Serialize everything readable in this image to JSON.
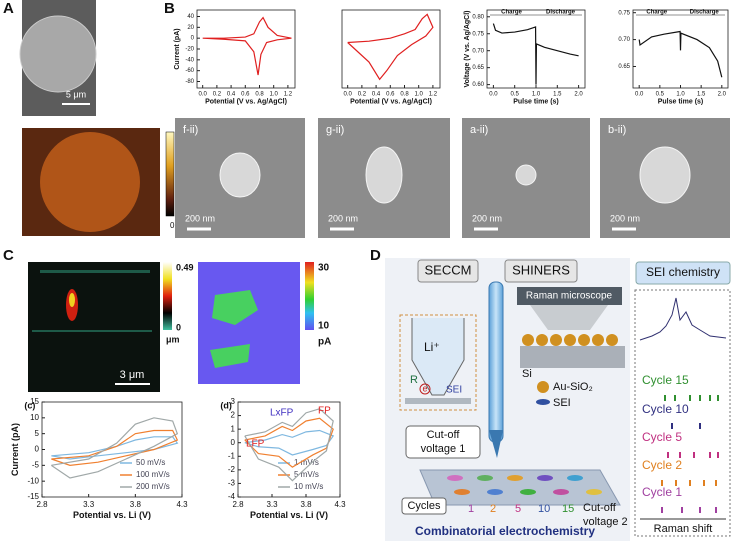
{
  "panel_labels": [
    "A",
    "B",
    "C",
    "D"
  ],
  "a": {
    "scale_bar": "5 μm",
    "colorbar_max": "66",
    "colorbar_min": "0 nA"
  },
  "b": {
    "plots": [
      {
        "xlabel": "Potential (V vs. Ag/AgCl)",
        "ylabel": "Current (pA)",
        "xlim": [
          -0.08,
          1.3
        ],
        "ylim": [
          -92,
          52
        ],
        "xticks": [
          {
            "value": 0,
            "label": "0.0"
          },
          {
            "value": 0.2,
            "label": "0.2"
          },
          {
            "value": 0.4,
            "label": "0.4"
          },
          {
            "value": 0.6,
            "label": "0.6"
          },
          {
            "value": 0.8,
            "label": "0.8"
          },
          {
            "value": 1,
            "label": "1.0"
          },
          {
            "value": 1.2,
            "label": "1.2"
          }
        ],
        "yticks": [
          -80,
          -60,
          -40,
          -20,
          0,
          20,
          40
        ],
        "series": [
          {
            "color": "#e02020",
            "x": [
              0,
              0.3,
              0.6,
              0.72,
              0.8,
              0.85,
              0.92,
              1.05,
              1.25,
              1.05,
              0.9,
              0.82,
              0.78,
              0.72,
              0.6,
              0.3,
              0
            ],
            "y": [
              0,
              0,
              2,
              8,
              30,
              38,
              20,
              5,
              0,
              -3,
              -8,
              -30,
              -68,
              -25,
              -5,
              -2,
              0
            ]
          }
        ]
      },
      {
        "xlabel": "Potential (V vs. Ag/AgCl)",
        "xlim": [
          -0.08,
          1.3
        ],
        "ylim": [
          -100,
          80
        ],
        "xticks": [
          {
            "value": 0,
            "label": "0.0"
          },
          {
            "value": 0.2,
            "label": "0.2"
          },
          {
            "value": 0.4,
            "label": "0.4"
          },
          {
            "value": 0.6,
            "label": "0.6"
          },
          {
            "value": 0.8,
            "label": "0.8"
          },
          {
            "value": 1,
            "label": "1.0"
          },
          {
            "value": 1.2,
            "label": "1.2"
          }
        ],
        "series": [
          {
            "color": "#e02020",
            "x": [
              0,
              0.3,
              0.6,
              0.8,
              0.95,
              1.05,
              1.12,
              1.2,
              1.1,
              0.9,
              0.7,
              0.55,
              0.45,
              0.3,
              0.1,
              0
            ],
            "y": [
              5,
              8,
              15,
              25,
              35,
              60,
              70,
              40,
              20,
              0,
              -25,
              -60,
              -80,
              -40,
              -10,
              5
            ]
          }
        ]
      },
      {
        "xlabel": "Pulse time (s)",
        "ylabel": "Voltage (V vs. Ag/AgCl)",
        "xlim": [
          -0.15,
          2.15
        ],
        "ylim": [
          0.59,
          0.82
        ],
        "xticks": [
          {
            "value": 0,
            "label": "0.0"
          },
          {
            "value": 0.5,
            "label": "0.5"
          },
          {
            "value": 1,
            "label": "1.0"
          },
          {
            "value": 1.5,
            "label": "1.5"
          },
          {
            "value": 2,
            "label": "2.0"
          }
        ],
        "yticks": [
          {
            "value": 0.6,
            "label": "0.60"
          },
          {
            "value": 0.65,
            "label": "0.65"
          },
          {
            "value": 0.7,
            "label": "0.70"
          },
          {
            "value": 0.75,
            "label": "0.75"
          },
          {
            "value": 0.8,
            "label": "0.80"
          }
        ],
        "annotations": [
          "Charge",
          "Discharge"
        ],
        "series": [
          {
            "color": "#111",
            "x": [
              0,
              0.05,
              0.2,
              0.5,
              0.8,
              0.99,
              1,
              1.01,
              1.2,
              1.5,
              1.8,
              2
            ],
            "y": [
              0.78,
              0.76,
              0.752,
              0.755,
              0.762,
              0.77,
              0.6,
              0.72,
              0.71,
              0.7,
              0.69,
              0.685
            ]
          }
        ]
      },
      {
        "xlabel": "Pulse time (s)",
        "xlim": [
          -0.15,
          2.15
        ],
        "ylim": [
          0.61,
          0.755
        ],
        "xticks": [
          {
            "value": 0,
            "label": "0.0"
          },
          {
            "value": 0.5,
            "label": "0.5"
          },
          {
            "value": 1,
            "label": "1.0"
          },
          {
            "value": 1.5,
            "label": "1.5"
          },
          {
            "value": 2,
            "label": "2.0"
          }
        ],
        "yticks": [
          {
            "value": 0.65,
            "label": "0.65"
          },
          {
            "value": 0.7,
            "label": "0.70"
          },
          {
            "value": 0.75,
            "label": "0.75"
          }
        ],
        "annotations": [
          "Charge",
          "Discharge"
        ],
        "series": [
          {
            "color": "#111",
            "x": [
              0,
              0.02,
              0.3,
              0.6,
              0.99,
              1,
              1.01,
              1.4,
              1.7,
              1.9,
              2
            ],
            "y": [
              0.7,
              0.69,
              0.705,
              0.71,
              0.715,
              0.68,
              0.712,
              0.7,
              0.685,
              0.66,
              0.63
            ]
          }
        ]
      }
    ],
    "images": [
      {
        "label": "f-ii)",
        "scale_bar": "200 nm"
      },
      {
        "label": "g-ii)",
        "scale_bar": "200 nm"
      },
      {
        "label": "a-ii)",
        "scale_bar": "200 nm"
      },
      {
        "label": "b-ii)",
        "scale_bar": "200 nm"
      }
    ]
  },
  "c": {
    "scale_bar": "3 μm",
    "map1_colorbar": [
      "0.49",
      "0",
      "μm"
    ],
    "map2_colorbar": [
      "30",
      "10",
      "pA"
    ],
    "plots": [
      {
        "tag": "(c)",
        "xlabel": "Potential vs. Li (V)",
        "ylabel": "Current (pA)",
        "xlim": [
          2.8,
          4.3
        ],
        "ylim": [
          -15,
          15
        ],
        "xticks": [
          2.8,
          3.3,
          3.8,
          4.3
        ],
        "yticks": [
          -15,
          -10,
          -5,
          0,
          5,
          10,
          15
        ],
        "series": [
          {
            "name": "50 mV/s",
            "color": "#7fb8e0",
            "x": [
              2.9,
              3.3,
              3.6,
              3.8,
              4,
              4.2,
              4.25,
              4,
              3.7,
              3.4,
              3.1,
              2.9
            ],
            "y": [
              -2,
              -1,
              1,
              3,
              4,
              4,
              2,
              0,
              -1,
              -2,
              -3,
              -2
            ]
          },
          {
            "name": "100 mV/s",
            "color": "#f08030",
            "x": [
              2.9,
              3.3,
              3.6,
              3.8,
              4,
              4.2,
              4.25,
              4,
              3.7,
              3.4,
              3.1,
              2.9
            ],
            "y": [
              -3,
              -2,
              1,
              5,
              6,
              6,
              3,
              0,
              -2,
              -4,
              -5,
              -3
            ]
          },
          {
            "name": "200 mV/s",
            "color": "#a0a8a8",
            "x": [
              2.9,
              3.3,
              3.6,
              3.8,
              4,
              4.2,
              4.25,
              4,
              3.7,
              3.4,
              3.1,
              2.9
            ],
            "y": [
              -5,
              -3,
              2,
              8,
              10,
              9,
              5,
              1,
              -3,
              -7,
              -9,
              -5
            ]
          }
        ]
      },
      {
        "tag": "(d)",
        "xlabel": "Potential vs. Li (V)",
        "xlim": [
          2.8,
          4.3
        ],
        "ylim": [
          -4,
          3
        ],
        "xticks": [
          2.8,
          3.3,
          3.8,
          4.3
        ],
        "yticks": [
          -4,
          -3,
          -2,
          -1,
          0,
          1,
          2,
          3
        ],
        "annotations": [
          "LFP",
          "LxFP",
          "FP"
        ],
        "series": [
          {
            "name": "1 mV/s",
            "color": "#7fb8e0",
            "x": [
              2.9,
              3.2,
              3.45,
              3.6,
              3.8,
              4,
              4.2,
              4.1,
              3.9,
              3.6,
              3.4,
              3.1,
              2.9
            ],
            "y": [
              0,
              0.2,
              0.6,
              0.4,
              0.8,
              0.9,
              0.5,
              -0.2,
              -0.5,
              -0.9,
              -0.4,
              -0.3,
              0
            ]
          },
          {
            "name": "5 mV/s",
            "color": "#f08030",
            "x": [
              2.9,
              3.2,
              3.45,
              3.6,
              3.8,
              4,
              4.2,
              4.1,
              3.9,
              3.6,
              3.4,
              3.1,
              2.9
            ],
            "y": [
              0.2,
              0.5,
              1.2,
              0.9,
              1.6,
              1.8,
              1,
              -0.4,
              -0.9,
              -1.8,
              -1,
              -0.8,
              0.2
            ]
          },
          {
            "name": "10 mV/s",
            "color": "#a0a8a8",
            "x": [
              2.9,
              3.2,
              3.45,
              3.6,
              3.8,
              4,
              4.2,
              4.1,
              3.9,
              3.6,
              3.4,
              3.1,
              2.9
            ],
            "y": [
              0.5,
              0.8,
              1.5,
              1.2,
              2.2,
              2.5,
              1.6,
              -0.6,
              -1.4,
              -2.8,
              -1.8,
              -1.2,
              0.5
            ]
          }
        ]
      }
    ]
  },
  "d": {
    "seccm": "SECCM",
    "shiners": "SHINERS",
    "sei_chemistry": "SEI chemistry",
    "raman_microscope": "Raman microscope",
    "inset": [
      "Li⁺",
      "R",
      "e",
      "SEI"
    ],
    "si": "Si",
    "legend": [
      "Au-SiO₂",
      "SEI"
    ],
    "cutoff1": [
      "Cut-off",
      "voltage 1"
    ],
    "cutoff2": [
      "Cut-off",
      "voltage 2"
    ],
    "cycles": "Cycles",
    "cycle_numbers": [
      "1",
      "2",
      "5",
      "10",
      "15"
    ],
    "cycle_labels": [
      "Cycle 15",
      "Cycle 10",
      "Cycle 5",
      "Cycle 2",
      "Cycle 1"
    ],
    "raman_shift": "Raman shift",
    "caption": "Combinatorial electrochemistry"
  }
}
